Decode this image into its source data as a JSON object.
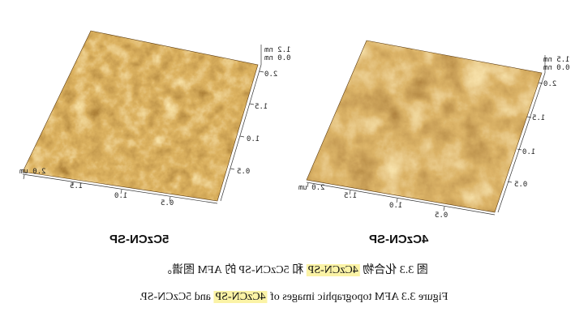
{
  "figure": {
    "left_panel": {
      "label": "5CzCN-SP",
      "x_ticks": [
        "0.5",
        "1.0",
        "1.5",
        "2.0 um"
      ],
      "y_ticks": [
        "0.5",
        "1.0",
        "1.5",
        "2.0"
      ],
      "z_scale": [
        "1.2 nm",
        "0.0 nm"
      ]
    },
    "right_panel": {
      "label": "4CzCN-SP",
      "x_ticks": [
        "0.5",
        "1.0",
        "1.5",
        "2.0 um"
      ],
      "y_ticks": [
        "0.5",
        "1.0",
        "1.5",
        "2.0"
      ],
      "z_scale": [
        "1.5 nm",
        "0.0 nm"
      ]
    }
  },
  "caption_cn": {
    "pre": "图 3.3 化合物 ",
    "highlight": "4CzCN-SP",
    "post": " 和 5CzCN-SP 的 AFM 图谱。"
  },
  "caption_en": {
    "pre": "Figure 3.3 AFM topographic images of ",
    "highlight": "4CzCN-SP",
    "post": " and 5CzCN-SP."
  },
  "colors": {
    "afm_dark": "#4a2506",
    "afm_mid": "#a8651c",
    "afm_light": "#f0cf7a",
    "highlight": "#fbf3a6"
  }
}
